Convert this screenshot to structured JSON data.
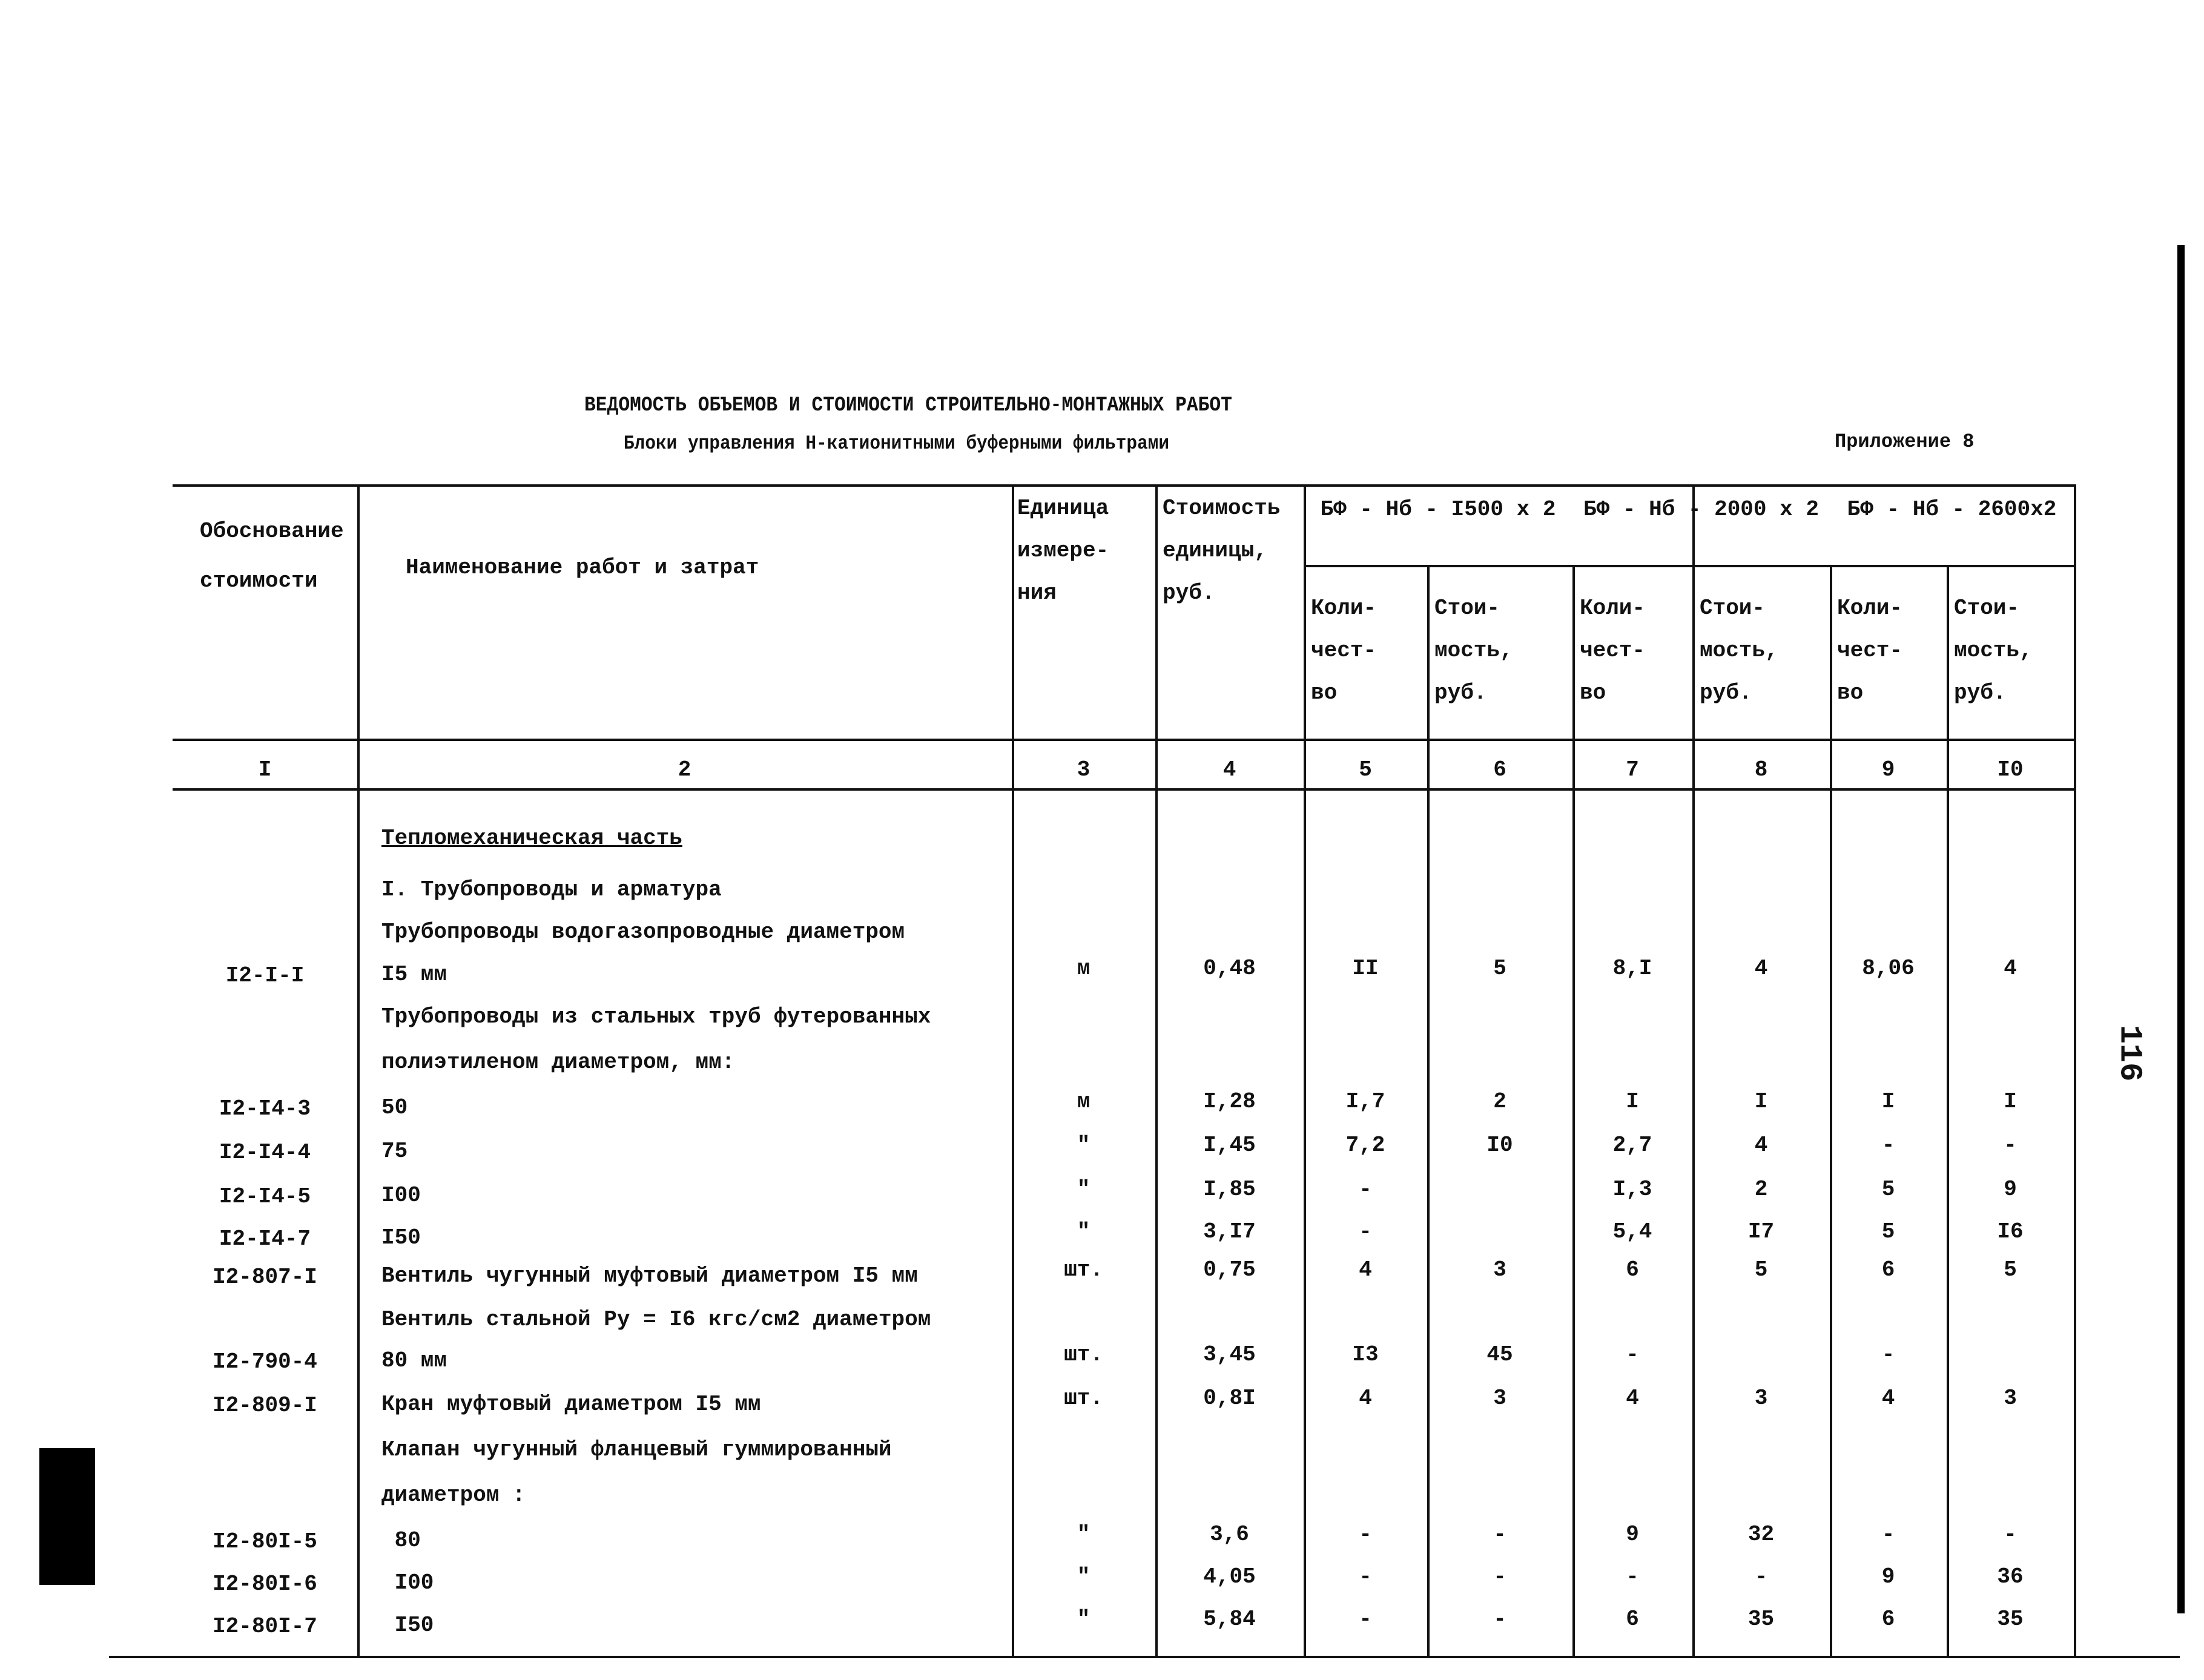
{
  "document": {
    "title": "ВЕДОМОСТЬ ОБЪЕМОВ И СТОИМОСТИ СТРОИТЕЛЬНО-МОНТАЖНЫХ РАБОТ",
    "subtitle": "Блоки управления Н-катионитными буферными фильтрами",
    "appendix": "Приложение 8",
    "page_number": "116"
  },
  "header": {
    "col1": [
      "Обоснование",
      "стоимости"
    ],
    "col2": "Наименование работ и затрат",
    "col3": [
      "Единица",
      "измере-",
      "ния"
    ],
    "col4": [
      "Стоимость",
      "единицы,",
      "руб."
    ],
    "groups": [
      "БФ - Нб - I500 x 2",
      "БФ - Нб - 2000 x 2",
      "БФ - Нб - 2600x2"
    ],
    "qty": [
      "Коли-",
      "чест-",
      "во"
    ],
    "cost": [
      "Стои-",
      "мость,",
      "руб."
    ],
    "numbers": [
      "I",
      "2",
      "3",
      "4",
      "5",
      "6",
      "7",
      "8",
      "9",
      "I0"
    ]
  },
  "rows": [
    {
      "code": "",
      "name": "Тепломеханическая часть",
      "underline": true,
      "cells": [
        "",
        "",
        "",
        "",
        "",
        "",
        "",
        ""
      ]
    },
    {
      "code": "",
      "name": "I. Трубопроводы и арматура",
      "cells": [
        "",
        "",
        "",
        "",
        "",
        "",
        "",
        ""
      ]
    },
    {
      "code": "",
      "name": "Трубопроводы водогазопроводные диаметром",
      "cells": [
        "",
        "",
        "",
        "",
        "",
        "",
        "",
        ""
      ]
    },
    {
      "code": "I2-I-I",
      "name": "I5 мм",
      "cells": [
        "м",
        "0,48",
        "II",
        "5",
        "8,I",
        "4",
        "8,06",
        "4"
      ]
    },
    {
      "code": "",
      "name": "Трубопроводы из стальных труб футерованных",
      "cells": [
        "",
        "",
        "",
        "",
        "",
        "",
        "",
        ""
      ]
    },
    {
      "code": "",
      "name": "полиэтиленом диаметром, мм:",
      "cells": [
        "",
        "",
        "",
        "",
        "",
        "",
        "",
        ""
      ]
    },
    {
      "code": "I2-I4-3",
      "name": "50",
      "cells": [
        "м",
        "I,28",
        "I,7",
        "2",
        "I",
        "I",
        "I",
        "I"
      ]
    },
    {
      "code": "I2-I4-4",
      "name": "75",
      "cells": [
        "\"",
        "I,45",
        "7,2",
        "I0",
        "2,7",
        "4",
        "-",
        "-"
      ]
    },
    {
      "code": "I2-I4-5",
      "name": "I00",
      "cells": [
        "\"",
        "I,85",
        "-",
        "",
        "I,3",
        "2",
        "5",
        "9"
      ]
    },
    {
      "code": "I2-I4-7",
      "name": "I50",
      "cells": [
        "\"",
        "3,I7",
        "-",
        "",
        "5,4",
        "I7",
        "5",
        "I6"
      ]
    },
    {
      "code": "I2-807-I",
      "name": "Вентиль чугунный муфтовый диаметром I5 мм",
      "cells": [
        "шт.",
        "0,75",
        "4",
        "3",
        "6",
        "5",
        "6",
        "5"
      ]
    },
    {
      "code": "",
      "name": "Вентиль стальной Ру = I6 кгс/см2 диаметром",
      "cells": [
        "",
        "",
        "",
        "",
        "",
        "",
        "",
        ""
      ]
    },
    {
      "code": "I2-790-4",
      "name": "80 мм",
      "cells": [
        "шт.",
        "3,45",
        "I3",
        "45",
        "-",
        "",
        "-",
        ""
      ]
    },
    {
      "code": "I2-809-I",
      "name": "Кран муфтовый диаметром I5 мм",
      "cells": [
        "шт.",
        "0,8I",
        "4",
        "3",
        "4",
        "3",
        "4",
        "3"
      ]
    },
    {
      "code": "",
      "name": "Клапан чугунный фланцевый гуммированный",
      "cells": [
        "",
        "",
        "",
        "",
        "",
        "",
        "",
        ""
      ]
    },
    {
      "code": "",
      "name": "диаметром :",
      "cells": [
        "",
        "",
        "",
        "",
        "",
        "",
        "",
        ""
      ]
    },
    {
      "code": "I2-80I-5",
      "name": " 80",
      "cells": [
        "\"",
        "3,6",
        "-",
        "-",
        "9",
        "32",
        "-",
        "-"
      ]
    },
    {
      "code": "I2-80I-6",
      "name": " I00",
      "cells": [
        "\"",
        "4,05",
        "-",
        "-",
        "-",
        "-",
        "9",
        "36"
      ]
    },
    {
      "code": "I2-80I-7",
      "name": " I50",
      "cells": [
        "\"",
        "5,84",
        "-",
        "-",
        "6",
        "35",
        "6",
        "35"
      ]
    }
  ]
}
